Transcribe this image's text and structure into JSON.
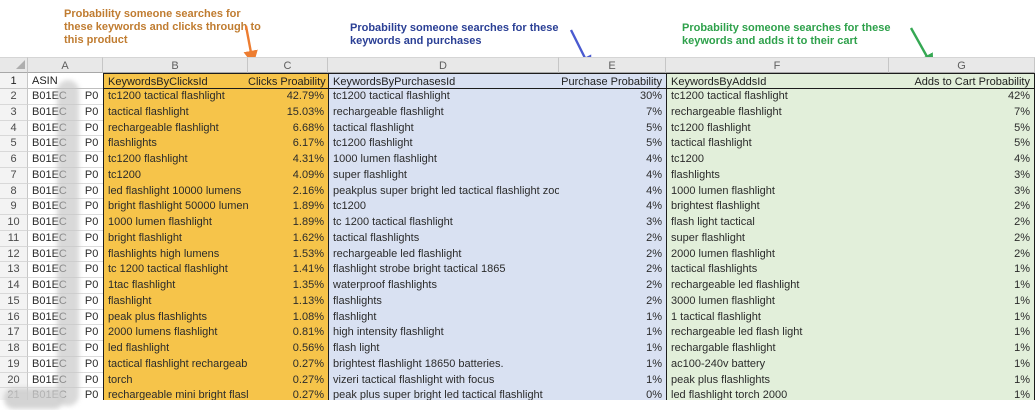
{
  "annotations": {
    "clicks": {
      "text": "Probability someone searches for\nthese keywords and clicks through to\nthis product",
      "text_color": "#C07C30",
      "arrow_color": "#ED7D31"
    },
    "purchases": {
      "text": "Probability someone searches for these\nkeywords and purchases",
      "text_color": "#2A3F95",
      "arrow_color": "#4A5AD0"
    },
    "adds": {
      "text": "Probability someone searches for these\nkeywords and adds it to their cart",
      "text_color": "#2EA14B",
      "arrow_color": "#35A853"
    }
  },
  "colors": {
    "clicks_fill": "#F6C44A",
    "purchases_fill": "#D9E1F2",
    "adds_fill": "#E2EFDA"
  },
  "spreadsheet": {
    "column_letters": {
      "a": "A",
      "b": "B",
      "c": "C",
      "d": "D",
      "e": "E",
      "f": "F",
      "g": "G"
    },
    "headers": {
      "row_number": "1",
      "asin": "ASIN",
      "clicks_keywords": "KeywordsByClicksId",
      "clicks_prob": "Clicks Proability",
      "purchases_keywords": "KeywordsByPurchasesId",
      "purchase_prob": "Purchase Probability",
      "adds_keywords": "KeywordsByAddsId",
      "adds_prob": "Adds to Cart Probability"
    },
    "asin_prefix": "B01EC",
    "asin_suffix": "P0",
    "rows": [
      {
        "n": "2",
        "ck": "tc1200 tactical flashlight",
        "cp": "42.79%",
        "pk": "tc1200 tactical flashlight",
        "pp": "30%",
        "ak": "tc1200 tactical flashlight",
        "ap": "42%"
      },
      {
        "n": "3",
        "ck": "tactical flashlight",
        "cp": "15.03%",
        "pk": "rechargeable flashlight",
        "pp": "7%",
        "ak": "rechargeable flashlight",
        "ap": "7%"
      },
      {
        "n": "4",
        "ck": "rechargeable flashlight",
        "cp": "6.68%",
        "pk": "tactical flashlight",
        "pp": "5%",
        "ak": "tc1200 flashlight",
        "ap": "5%"
      },
      {
        "n": "5",
        "ck": "flashlights",
        "cp": "6.17%",
        "pk": "tc1200 flashlight",
        "pp": "5%",
        "ak": "tactical flashlight",
        "ap": "5%"
      },
      {
        "n": "6",
        "ck": "tc1200 flashlight",
        "cp": "4.31%",
        "pk": "1000 lumen flashlight",
        "pp": "4%",
        "ak": "tc1200",
        "ap": "4%"
      },
      {
        "n": "7",
        "ck": "tc1200",
        "cp": "4.09%",
        "pk": "super flashlight",
        "pp": "4%",
        "ak": "flashlights",
        "ap": "3%"
      },
      {
        "n": "8",
        "ck": "led flashlight 10000 lumens",
        "cp": "2.16%",
        "pk": "peakplus super bright led tactical flashlight zoo",
        "pp": "4%",
        "ak": "1000 lumen flashlight",
        "ap": "3%"
      },
      {
        "n": "9",
        "ck": "bright flashlight 50000 lumen",
        "cp": "1.89%",
        "pk": "tc1200",
        "pp": "4%",
        "ak": "brightest flashlight",
        "ap": "2%"
      },
      {
        "n": "10",
        "ck": "1000 lumen flashlight",
        "cp": "1.89%",
        "pk": "tc 1200 tactical flashlight",
        "pp": "3%",
        "ak": "flash light tactical",
        "ap": "2%"
      },
      {
        "n": "11",
        "ck": "bright flashlight",
        "cp": "1.62%",
        "pk": "tactical flashlights",
        "pp": "2%",
        "ak": "super flashlight",
        "ap": "2%"
      },
      {
        "n": "12",
        "ck": "flashlights high lumens",
        "cp": "1.53%",
        "pk": "rechargeable led flashlight",
        "pp": "2%",
        "ak": "2000 lumen flashlight",
        "ap": "2%"
      },
      {
        "n": "13",
        "ck": "tc 1200 tactical flashlight",
        "cp": "1.41%",
        "pk": "flashlight strobe bright tactical 1865",
        "pp": "2%",
        "ak": "tactical flashlights",
        "ap": "1%"
      },
      {
        "n": "14",
        "ck": "1tac flashlight",
        "cp": "1.35%",
        "pk": "waterproof flashlights",
        "pp": "2%",
        "ak": "rechargeable led flashlight",
        "ap": "1%"
      },
      {
        "n": "15",
        "ck": "flashlight",
        "cp": "1.13%",
        "pk": "flashlights",
        "pp": "2%",
        "ak": "3000 lumen flashlight",
        "ap": "1%"
      },
      {
        "n": "16",
        "ck": "peak plus flashlights",
        "cp": "1.08%",
        "pk": "flashlight",
        "pp": "1%",
        "ak": "1 tactical flashlight",
        "ap": "1%"
      },
      {
        "n": "17",
        "ck": "2000 lumens flashlight",
        "cp": "0.81%",
        "pk": "high intensity flashlight",
        "pp": "1%",
        "ak": "rechargeable led flash light",
        "ap": "1%"
      },
      {
        "n": "18",
        "ck": "led flashlight",
        "cp": "0.56%",
        "pk": "flash light",
        "pp": "1%",
        "ak": "rechargable flashlight",
        "ap": "1%"
      },
      {
        "n": "19",
        "ck": "tactical flashlight rechargeab",
        "cp": "0.27%",
        "pk": "brightest flashlight 18650 batteries.",
        "pp": "1%",
        "ak": "ac100-240v battery",
        "ap": "1%"
      },
      {
        "n": "20",
        "ck": "torch",
        "cp": "0.27%",
        "pk": "vizeri tactical flashlight with focus",
        "pp": "1%",
        "ak": "peak plus flashlights",
        "ap": "1%"
      },
      {
        "n": "21",
        "ck": "rechargeable mini bright flasl",
        "cp": "0.27%",
        "pk": "peak plus super bright led tactical flashlight",
        "pp": "0%",
        "ak": "led flashlight torch 2000",
        "ap": "1%"
      }
    ]
  }
}
